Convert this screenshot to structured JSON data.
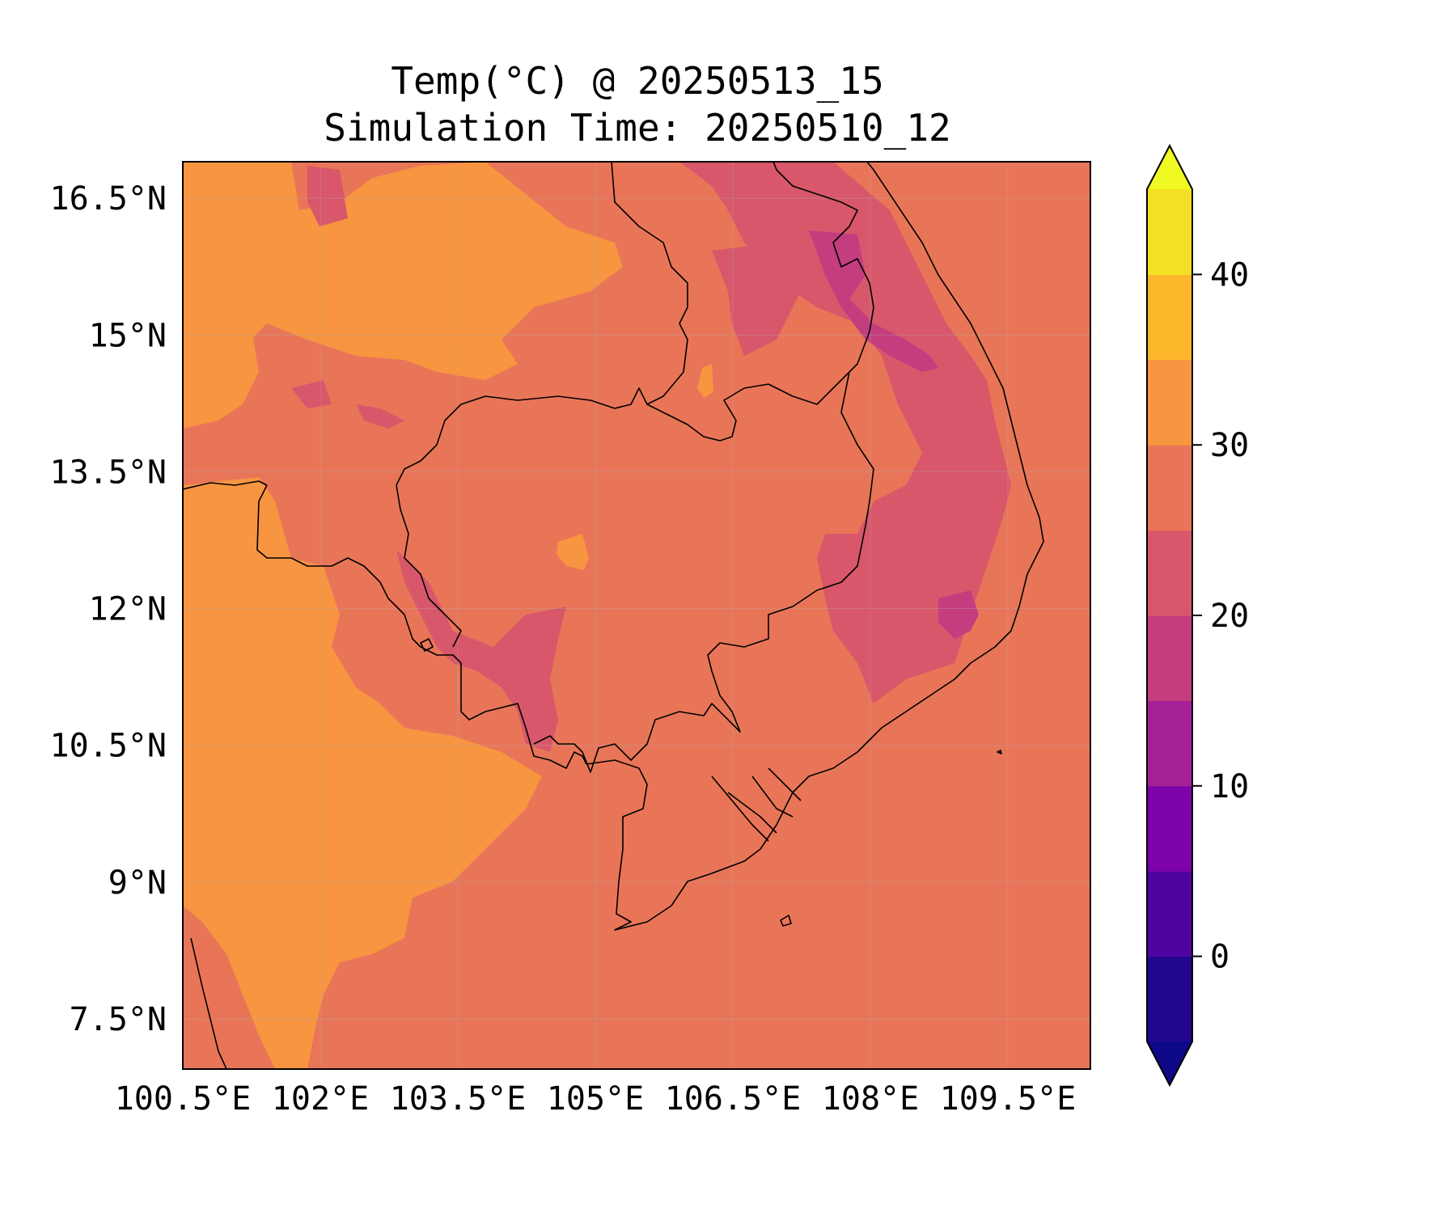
{
  "title": "Temp(°C) @ 20250513_15",
  "subtitle": "Simulation Time: 20250510_12",
  "map": {
    "extent": {
      "lon": [
        100.5,
        110.4
      ],
      "lat": [
        6.95,
        16.9
      ]
    },
    "x_ticks": [
      {
        "lon": 100.5,
        "label": "100.5°E"
      },
      {
        "lon": 102.0,
        "label": "102°E"
      },
      {
        "lon": 103.5,
        "label": "103.5°E"
      },
      {
        "lon": 105.0,
        "label": "105°E"
      },
      {
        "lon": 106.5,
        "label": "106.5°E"
      },
      {
        "lon": 108.0,
        "label": "108°E"
      },
      {
        "lon": 109.5,
        "label": "109.5°E"
      }
    ],
    "y_ticks": [
      {
        "lat": 16.5,
        "label": "16.5°N"
      },
      {
        "lat": 15.0,
        "label": "15°N"
      },
      {
        "lat": 13.5,
        "label": "13.5°N"
      },
      {
        "lat": 12.0,
        "label": "12°N"
      },
      {
        "lat": 10.5,
        "label": "10.5°N"
      },
      {
        "lat": 9.0,
        "label": "9°N"
      },
      {
        "lat": 7.5,
        "label": "7.5°N"
      }
    ],
    "background_level_color": "#e97558"
  },
  "colorbar": {
    "range": [
      -5,
      45
    ],
    "levels": [
      -5,
      0,
      5,
      10,
      15,
      20,
      25,
      30,
      35,
      40,
      45
    ],
    "colors": [
      "#22068d",
      "#4e03a0",
      "#7d03a8",
      "#a42097",
      "#c43e7f",
      "#d8576b",
      "#e97558",
      "#f79541",
      "#fcb72b",
      "#f3e024"
    ],
    "under_color": "#0d0887",
    "over_color": "#f0f921",
    "ticks": [
      {
        "value": 0,
        "label": "0"
      },
      {
        "value": 10,
        "label": "10"
      },
      {
        "value": 20,
        "label": "20"
      },
      {
        "value": 30,
        "label": "30"
      },
      {
        "value": 40,
        "label": "40"
      }
    ]
  }
}
